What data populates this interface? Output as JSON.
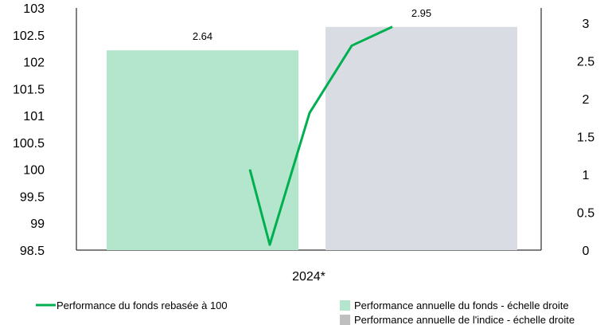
{
  "chart_data": {
    "type": "bar",
    "categories": [
      "2024*"
    ],
    "bars": [
      {
        "name": "Performance annuelle du fonds - échelle droite",
        "value": 2.64,
        "label": "2.64",
        "color": "#b3e6cc"
      },
      {
        "name": "Performance annuelle de l'indice - échelle droite",
        "value": 2.95,
        "label": "2.95",
        "color": "#d9dde3"
      }
    ],
    "line": {
      "name": "Performance du fonds rebasée à 100",
      "color": "#00b050",
      "values": [
        100.0,
        98.6,
        101.05,
        102.3,
        102.65
      ]
    },
    "y_left": {
      "ticks": [
        "103",
        "102.5",
        "102",
        "101.5",
        "101",
        "100.5",
        "100",
        "99.5",
        "99",
        "98.5"
      ],
      "ylim": [
        98.5,
        103
      ]
    },
    "y_right": {
      "ticks": [
        "3",
        "2.5",
        "2",
        "1.5",
        "1",
        "0.5",
        "0"
      ],
      "ylim": [
        0,
        3.2
      ]
    },
    "legend": {
      "placement": "bottom",
      "items": [
        {
          "text": "Performance du fonds rebasée à 100",
          "marker": "line",
          "color": "#00b050"
        },
        {
          "text": "Performance annuelle du fonds - échelle droite",
          "marker": "square",
          "color": "#b3e6cc"
        },
        {
          "text": "Performance annuelle de l'indice - échelle droite",
          "marker": "square",
          "color": "#bfbfbf"
        }
      ]
    }
  }
}
